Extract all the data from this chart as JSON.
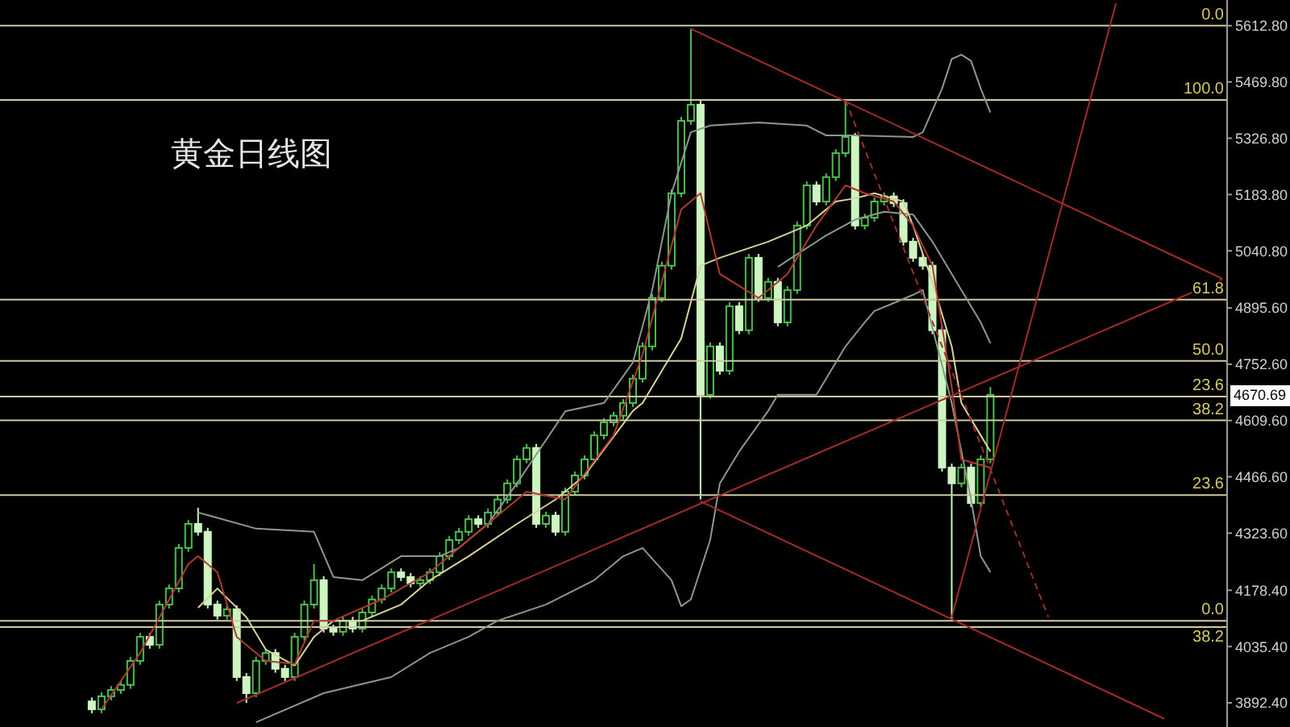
{
  "chart_data": {
    "type": "candlestick",
    "title": "黄金日线图",
    "tick_labels": "y",
    "categories": [
      null,
      null,
      null,
      null,
      null,
      null,
      null,
      null,
      null,
      null,
      null,
      null,
      null,
      null,
      null,
      null,
      null,
      null,
      null,
      null,
      null,
      null,
      null,
      null,
      null,
      null,
      null,
      null,
      null,
      null,
      null,
      null,
      null,
      null,
      null,
      null,
      null,
      null,
      null,
      null,
      null,
      null,
      null,
      null,
      null,
      null,
      null,
      null,
      null,
      null,
      null,
      null,
      null,
      null,
      null,
      null,
      null,
      null,
      null,
      null,
      null,
      null,
      null,
      null,
      null,
      null,
      null,
      null,
      null,
      null,
      null,
      null,
      null,
      null,
      null,
      null,
      null,
      null,
      null,
      null,
      null,
      null,
      null,
      null,
      null,
      null,
      null,
      null,
      null,
      null,
      null,
      null,
      null,
      null,
      null,
      null,
      null,
      null,
      null,
      null,
      null,
      null,
      null,
      null,
      null,
      null,
      null,
      null,
      null,
      null,
      null,
      null,
      null,
      null,
      null,
      null,
      null,
      null,
      null,
      null,
      null,
      null,
      null,
      null,
      null,
      null,
      null
    ],
    "ohlc": [
      null,
      null,
      null,
      null,
      null,
      null,
      null,
      null,
      null,
      [
        3896,
        3906,
        3866,
        3876
      ],
      [
        3876,
        3919,
        3866,
        3909
      ],
      [
        3909,
        3935,
        3899,
        3925
      ],
      [
        3925,
        3948,
        3915,
        3938
      ],
      [
        3938,
        4009,
        3928,
        3999
      ],
      [
        3999,
        4070,
        3989,
        4060
      ],
      [
        4060,
        4070,
        4030,
        4040
      ],
      [
        4040,
        4152,
        4030,
        4142
      ],
      [
        4142,
        4193,
        4132,
        4183
      ],
      [
        4183,
        4296,
        4173,
        4286
      ],
      [
        4286,
        4357,
        4276,
        4347
      ],
      [
        4347,
        4388,
        4317,
        4327
      ],
      [
        4327,
        4337,
        4132,
        4142
      ],
      [
        4142,
        4152,
        4104,
        4114
      ],
      [
        4114,
        4140,
        4104,
        4130
      ],
      [
        4130,
        4140,
        3948,
        3958
      ],
      [
        3958,
        3968,
        3892,
        3917
      ],
      [
        3917,
        4009,
        3907,
        3999
      ],
      [
        3999,
        4029,
        3989,
        4019
      ],
      [
        4019,
        4029,
        3969,
        3979
      ],
      [
        3979,
        3989,
        3948,
        3958
      ],
      [
        3958,
        4070,
        3948,
        4060
      ],
      [
        4060,
        4152,
        4050,
        4142
      ],
      [
        4142,
        4245,
        4132,
        4204
      ],
      [
        4204,
        4214,
        4071,
        4081
      ],
      [
        4081,
        4091,
        4063,
        4073
      ],
      [
        4073,
        4111,
        4063,
        4101
      ],
      [
        4101,
        4111,
        4071,
        4081
      ],
      [
        4081,
        4132,
        4071,
        4122
      ],
      [
        4122,
        4165,
        4112,
        4155
      ],
      [
        4155,
        4193,
        4145,
        4183
      ],
      [
        4183,
        4234,
        4173,
        4224
      ],
      [
        4224,
        4234,
        4202,
        4212
      ],
      [
        4212,
        4222,
        4186,
        4196
      ],
      [
        4196,
        4214,
        4186,
        4204
      ],
      [
        4204,
        4234,
        4194,
        4224
      ],
      [
        4224,
        4275,
        4214,
        4265
      ],
      [
        4265,
        4316,
        4255,
        4306
      ],
      [
        4306,
        4337,
        4296,
        4327
      ],
      [
        4327,
        4369,
        4317,
        4359
      ],
      [
        4359,
        4369,
        4337,
        4347
      ],
      [
        4347,
        4386,
        4337,
        4376
      ],
      [
        4376,
        4419,
        4366,
        4409
      ],
      [
        4409,
        4460,
        4399,
        4450
      ],
      [
        4450,
        4521,
        4440,
        4511
      ],
      [
        4511,
        4550,
        4501,
        4540
      ],
      [
        4540,
        4550,
        4337,
        4347
      ],
      [
        4347,
        4378,
        4337,
        4368
      ],
      [
        4368,
        4378,
        4317,
        4327
      ],
      [
        4327,
        4439,
        4317,
        4429
      ],
      [
        4429,
        4480,
        4419,
        4470
      ],
      [
        4470,
        4521,
        4460,
        4511
      ],
      [
        4511,
        4582,
        4501,
        4572
      ],
      [
        4572,
        4615,
        4562,
        4605
      ],
      [
        4605,
        4632,
        4595,
        4622
      ],
      [
        4622,
        4664,
        4612,
        4654
      ],
      [
        4654,
        4726,
        4644,
        4716
      ],
      [
        4716,
        4808,
        4706,
        4798
      ],
      [
        4798,
        4931,
        4788,
        4921
      ],
      [
        4921,
        5013,
        4911,
        5003
      ],
      [
        5003,
        5197,
        4993,
        5187
      ],
      [
        5187,
        5381,
        5177,
        5371
      ],
      [
        5371,
        5605,
        5361,
        5412
      ],
      [
        5412,
        5422,
        4409,
        4675
      ],
      [
        4675,
        4808,
        4665,
        4798
      ],
      [
        4798,
        4808,
        4726,
        4736
      ],
      [
        4736,
        4910,
        4726,
        4900
      ],
      [
        4900,
        4910,
        4829,
        4839
      ],
      [
        4839,
        5033,
        4829,
        5023
      ],
      [
        5023,
        5033,
        4911,
        4921
      ],
      [
        4921,
        4972,
        4911,
        4962
      ],
      [
        4962,
        4972,
        4849,
        4859
      ],
      [
        4859,
        4951,
        4849,
        4941
      ],
      [
        4941,
        5115,
        4931,
        5105
      ],
      [
        5105,
        5217,
        5095,
        5207
      ],
      [
        5207,
        5217,
        5156,
        5166
      ],
      [
        5166,
        5238,
        5156,
        5228
      ],
      [
        5228,
        5299,
        5218,
        5289
      ],
      [
        5289,
        5424,
        5279,
        5330
      ],
      [
        5330,
        5340,
        5095,
        5105
      ],
      [
        5105,
        5135,
        5095,
        5125
      ],
      [
        5125,
        5176,
        5115,
        5166
      ],
      [
        5166,
        5189,
        5156,
        5179
      ],
      [
        5179,
        5189,
        5152,
        5162
      ],
      [
        5162,
        5172,
        5054,
        5064
      ],
      [
        5064,
        5074,
        5013,
        5023
      ],
      [
        5023,
        5033,
        4993,
        5003
      ],
      [
        5003,
        5013,
        4829,
        4839
      ],
      [
        4839,
        4849,
        4480,
        4490
      ],
      [
        4490,
        4500,
        4102,
        4450
      ],
      [
        4450,
        4500,
        4440,
        4490
      ],
      [
        4490,
        4500,
        4390,
        4400
      ],
      [
        4400,
        4521,
        4390,
        4511
      ],
      [
        4511,
        4695,
        4501,
        4675
      ],
      null,
      null,
      null,
      null,
      null,
      null,
      null,
      null,
      null,
      null,
      null,
      null,
      null,
      null,
      null,
      null,
      null,
      null,
      null,
      null,
      null,
      null,
      null,
      null
    ],
    "series": [
      {
        "type": "line",
        "color": "#8a9a8a",
        "values": [
          null,
          null,
          null,
          null,
          null,
          null,
          null,
          null,
          null,
          null,
          null,
          null,
          null,
          null,
          null,
          null,
          null,
          null,
          null,
          null,
          4376,
          null,
          null,
          null,
          null,
          null,
          4335,
          null,
          null,
          null,
          null,
          null,
          4327,
          null,
          4212,
          null,
          null,
          4204,
          null,
          null,
          null,
          4265,
          null,
          null,
          null,
          4265,
          null,
          4286,
          null,
          null,
          4347,
          null,
          null,
          4450,
          null,
          4523,
          null,
          null,
          4633,
          null,
          null,
          null,
          4654,
          null,
          null,
          4757,
          null,
          4941,
          null,
          5187,
          null,
          5342,
          null,
          5359,
          null,
          null,
          null,
          null,
          5367,
          null,
          null,
          null,
          null,
          5359,
          null,
          5334,
          null,
          null,
          5334,
          null,
          null,
          null,
          null,
          null,
          5330,
          5342,
          null,
          5453,
          5528,
          5539,
          5523,
          5453,
          5392,
          null,
          null,
          null,
          null,
          null,
          null,
          null,
          null,
          null,
          null,
          null,
          null,
          null,
          null,
          null,
          null,
          null,
          null,
          null,
          null,
          null,
          null,
          null,
          null
        ]
      },
      {
        "type": "line",
        "color": "#8a9a8a",
        "values": [
          null,
          null,
          null,
          null,
          null,
          null,
          null,
          null,
          null,
          null,
          null,
          null,
          null,
          null,
          null,
          null,
          null,
          null,
          null,
          null,
          null,
          null,
          null,
          null,
          null,
          null,
          3843,
          null,
          null,
          null,
          null,
          null,
          null,
          3917,
          null,
          null,
          null,
          null,
          null,
          null,
          3958,
          null,
          null,
          null,
          4019,
          null,
          null,
          null,
          4060,
          null,
          null,
          4101,
          null,
          null,
          null,
          null,
          4142,
          null,
          null,
          null,
          null,
          4204,
          null,
          null,
          4265,
          null,
          4286,
          null,
          null,
          4204,
          4138,
          4155,
          null,
          4306,
          4450,
          null,
          4531,
          null,
          null,
          4634,
          4675,
          null,
          null,
          null,
          4675,
          4716,
          null,
          4798,
          null,
          4859,
          4888,
          null,
          4908,
          null,
          4929,
          4941,
          null,
          null,
          4654,
          null,
          4409,
          4265,
          4224,
          null,
          null,
          null,
          null,
          null,
          null,
          null,
          null,
          null,
          null,
          null,
          null,
          null,
          null,
          null,
          null,
          null,
          null,
          null,
          null,
          null,
          null,
          null,
          null
        ]
      },
      {
        "type": "line",
        "color": "#8a9a8a",
        "values": [
          null,
          null,
          null,
          null,
          null,
          null,
          null,
          null,
          null,
          null,
          null,
          null,
          null,
          null,
          null,
          null,
          null,
          null,
          null,
          null,
          null,
          null,
          null,
          null,
          null,
          null,
          null,
          null,
          null,
          null,
          null,
          null,
          null,
          null,
          null,
          null,
          null,
          null,
          null,
          null,
          null,
          null,
          null,
          null,
          null,
          null,
          null,
          null,
          null,
          null,
          null,
          null,
          null,
          null,
          null,
          null,
          null,
          null,
          null,
          null,
          null,
          null,
          null,
          null,
          null,
          null,
          null,
          null,
          null,
          null,
          null,
          null,
          null,
          null,
          null,
          null,
          null,
          null,
          null,
          null,
          5000,
          null,
          null,
          null,
          null,
          5080,
          null,
          null,
          5120,
          null,
          null,
          5140,
          null,
          null,
          5133,
          null,
          5064,
          null,
          null,
          4941,
          null,
          4859,
          4806,
          null,
          null,
          null,
          null,
          null,
          null,
          null,
          null,
          null,
          null,
          null,
          null,
          null,
          null,
          null,
          null,
          null,
          null,
          null,
          null,
          null,
          null,
          null,
          null
        ]
      },
      {
        "type": "line",
        "color": "#d9d29a",
        "values": [
          null,
          null,
          null,
          null,
          null,
          null,
          null,
          null,
          null,
          null,
          null,
          null,
          null,
          null,
          null,
          null,
          null,
          null,
          null,
          null,
          4134,
          null,
          4183,
          null,
          null,
          4110,
          null,
          4028,
          null,
          null,
          3987,
          null,
          4060,
          null,
          4101,
          null,
          null,
          4101,
          null,
          null,
          null,
          4142,
          null,
          null,
          4204,
          null,
          null,
          null,
          4265,
          null,
          null,
          null,
          null,
          4347,
          null,
          null,
          null,
          4409,
          null,
          null,
          4470,
          null,
          null,
          null,
          null,
          4634,
          4654,
          null,
          null,
          null,
          4818,
          null,
          5003,
          null,
          5023,
          null,
          null,
          null,
          null,
          5064,
          null,
          null,
          null,
          5105,
          null,
          null,
          5166,
          null,
          5174,
          null,
          5187,
          null,
          null,
          5166,
          5105,
          null,
          4962,
          null,
          4798,
          4654,
          null,
          4572,
          4531,
          null,
          null,
          null,
          null,
          null,
          null,
          null,
          null,
          null,
          null,
          null,
          null,
          null,
          null,
          null,
          null,
          null,
          null,
          null,
          null,
          null,
          null,
          null,
          null
        ]
      },
      {
        "type": "line",
        "color": "#b03a2e",
        "values": [
          null,
          null,
          null,
          null,
          null,
          null,
          null,
          null,
          null,
          null,
          3876,
          null,
          null,
          null,
          4019,
          null,
          null,
          null,
          null,
          4245,
          4265,
          null,
          4224,
          null,
          4060,
          null,
          null,
          3999,
          null,
          null,
          3991,
          null,
          4101,
          null,
          4101,
          null,
          null,
          null,
          null,
          4155,
          null,
          null,
          null,
          null,
          4224,
          null,
          null,
          null,
          null,
          4327,
          null,
          null,
          null,
          null,
          4429,
          null,
          null,
          null,
          4409,
          null,
          null,
          null,
          null,
          4572,
          null,
          null,
          4777,
          null,
          null,
          null,
          5146,
          null,
          5187,
          null,
          4982,
          null,
          null,
          null,
          4921,
          null,
          null,
          4982,
          null,
          null,
          5105,
          null,
          null,
          5207,
          null,
          5187,
          null,
          null,
          5166,
          null,
          5105,
          null,
          5003,
          null,
          4695,
          4511,
          null,
          null,
          4490,
          null,
          null,
          null,
          null,
          null,
          null,
          null,
          null,
          null,
          null,
          null,
          null,
          null,
          null,
          null,
          null,
          null,
          null,
          null,
          null,
          null,
          null,
          null,
          null
        ]
      },
      {
        "type": "line",
        "color": "#a52a2a",
        "values": [
          null,
          null,
          null,
          null,
          null,
          null,
          null,
          null,
          null,
          null,
          null,
          null,
          null,
          null,
          null,
          null,
          null,
          null,
          null,
          null,
          null,
          null,
          null,
          null,
          null,
          null,
          null,
          null,
          null,
          null,
          null,
          null,
          null,
          null,
          null,
          null,
          null,
          null,
          null,
          null,
          null,
          null,
          null,
          null,
          null,
          null,
          null,
          null,
          null,
          null,
          null,
          null,
          null,
          null,
          null,
          null,
          null,
          null,
          null,
          null,
          null,
          null,
          null,
          null,
          null,
          null,
          null,
          null,
          null,
          null,
          null,
          5605,
          null,
          null,
          null,
          null,
          null,
          null,
          null,
          null,
          null,
          null,
          null,
          null,
          null,
          null,
          null,
          null,
          null,
          null,
          null,
          null,
          null,
          null,
          null,
          null,
          null,
          null,
          null,
          null,
          null,
          null,
          null,
          null,
          null,
          null,
          null,
          null,
          null,
          null,
          null,
          null,
          null,
          null,
          null,
          null,
          null,
          null,
          null,
          null,
          null,
          null,
          null,
          null,
          null,
          null,
          4970
        ]
      },
      {
        "type": "line",
        "color": "#a52a2a",
        "values": [
          null,
          null,
          null,
          null,
          null,
          null,
          null,
          null,
          null,
          null,
          null,
          null,
          null,
          null,
          null,
          null,
          null,
          null,
          null,
          null,
          null,
          null,
          null,
          null,
          3892,
          null,
          null,
          null,
          null,
          null,
          null,
          null,
          null,
          null,
          null,
          null,
          null,
          null,
          null,
          null,
          null,
          null,
          null,
          null,
          null,
          null,
          null,
          null,
          null,
          null,
          null,
          null,
          null,
          null,
          null,
          null,
          null,
          null,
          null,
          null,
          null,
          null,
          null,
          null,
          null,
          null,
          null,
          null,
          null,
          null,
          null,
          null,
          null,
          null,
          null,
          null,
          null,
          null,
          null,
          null,
          null,
          null,
          null,
          null,
          null,
          null,
          null,
          null,
          null,
          null,
          null,
          null,
          null,
          null,
          null,
          null,
          null,
          null,
          null,
          null,
          null,
          null,
          null,
          null,
          null,
          null,
          null,
          null,
          null,
          null,
          null,
          null,
          null,
          null,
          null,
          null,
          null,
          null,
          null,
          null,
          null,
          null,
          null,
          null,
          null,
          null,
          4968
        ]
      },
      {
        "type": "line",
        "color": "#a52a2a",
        "values": [
          null,
          null,
          null,
          null,
          null,
          null,
          null,
          null,
          null,
          null,
          null,
          null,
          null,
          null,
          null,
          null,
          null,
          null,
          null,
          null,
          null,
          null,
          null,
          null,
          null,
          null,
          null,
          null,
          null,
          null,
          null,
          null,
          null,
          null,
          null,
          null,
          null,
          null,
          null,
          null,
          null,
          null,
          null,
          null,
          null,
          null,
          null,
          null,
          null,
          null,
          null,
          null,
          null,
          null,
          null,
          null,
          null,
          null,
          null,
          null,
          null,
          null,
          null,
          null,
          null,
          null,
          null,
          null,
          null,
          null,
          null,
          null,
          4404,
          null,
          null,
          null,
          null,
          null,
          null,
          null,
          null,
          null,
          null,
          null,
          null,
          null,
          null,
          null,
          null,
          null,
          null,
          null,
          null,
          null,
          null,
          null,
          null,
          null,
          null,
          null,
          null,
          null,
          null,
          null,
          null,
          null,
          null,
          null,
          null,
          null,
          null,
          null,
          null,
          null,
          null,
          null,
          null,
          null,
          null,
          null,
          3852,
          null,
          null,
          null,
          null,
          null,
          null
        ]
      },
      {
        "type": "line",
        "color": "#a52a2a",
        "values": [
          null,
          null,
          null,
          null,
          null,
          null,
          null,
          null,
          null,
          null,
          null,
          null,
          null,
          null,
          null,
          null,
          null,
          null,
          null,
          null,
          null,
          null,
          null,
          null,
          null,
          null,
          null,
          null,
          null,
          null,
          null,
          null,
          null,
          null,
          null,
          null,
          null,
          null,
          null,
          null,
          null,
          null,
          null,
          null,
          null,
          null,
          null,
          null,
          null,
          null,
          null,
          null,
          null,
          null,
          null,
          null,
          null,
          null,
          null,
          null,
          null,
          null,
          null,
          null,
          null,
          null,
          null,
          null,
          null,
          null,
          null,
          null,
          null,
          null,
          null,
          null,
          null,
          null,
          null,
          null,
          null,
          null,
          null,
          null,
          null,
          null,
          null,
          null,
          null,
          null,
          null,
          null,
          null,
          null,
          null,
          null,
          null,
          null,
          4110,
          null,
          null,
          null,
          null,
          null,
          null,
          null,
          null,
          null,
          null,
          null,
          null,
          null,
          null,
          null,
          null,
          5670,
          null,
          null,
          null,
          null,
          null,
          null,
          null,
          null,
          null,
          null,
          null
        ]
      },
      {
        "type": "line",
        "color": "#a52a2a",
        "line_style": "dashed",
        "values": [
          null,
          null,
          null,
          null,
          null,
          null,
          null,
          null,
          null,
          null,
          null,
          null,
          null,
          null,
          null,
          null,
          null,
          null,
          null,
          null,
          null,
          null,
          null,
          null,
          null,
          null,
          null,
          null,
          null,
          null,
          null,
          null,
          null,
          null,
          null,
          null,
          null,
          null,
          null,
          null,
          null,
          null,
          null,
          null,
          null,
          null,
          null,
          null,
          null,
          null,
          null,
          null,
          null,
          null,
          null,
          null,
          null,
          null,
          null,
          null,
          null,
          null,
          null,
          null,
          null,
          null,
          null,
          null,
          null,
          null,
          null,
          null,
          null,
          null,
          null,
          null,
          null,
          null,
          null,
          null,
          null,
          null,
          null,
          null,
          null,
          null,
          null,
          5424,
          null,
          null,
          null,
          null,
          null,
          null,
          null,
          null,
          null,
          null,
          null,
          null,
          null,
          null,
          null,
          null,
          null,
          null,
          null,
          null,
          4110,
          null,
          null,
          null,
          null,
          null,
          null,
          null,
          null,
          null,
          null,
          null,
          null,
          null,
          null,
          null,
          null,
          null,
          null
        ]
      }
    ],
    "ylim": [
      3831,
      5678
    ],
    "yticks": [
      {
        "value": 3892.4,
        "label": "3892.40"
      },
      {
        "value": 4035.4,
        "label": "4035.40"
      },
      {
        "value": 4178.4,
        "label": "4178.40"
      },
      {
        "value": 4323.6,
        "label": "4323.60"
      },
      {
        "value": 4466.6,
        "label": "4466.60"
      },
      {
        "value": 4609.6,
        "label": "4609.60"
      },
      {
        "value": 4752.6,
        "label": "4752.60"
      },
      {
        "value": 4895.6,
        "label": "4895.60"
      },
      {
        "value": 5040.8,
        "label": "5040.80"
      },
      {
        "value": 5183.8,
        "label": "5183.80"
      },
      {
        "value": 5326.8,
        "label": "5326.80"
      },
      {
        "value": 5469.8,
        "label": "5469.80"
      },
      {
        "value": 5612.8,
        "label": "5612.80"
      }
    ],
    "ref_lines": [
      {
        "axis": "y",
        "value": 5612.8,
        "color": "#cfcaa0"
      },
      {
        "axis": "y",
        "value": 5424,
        "color": "#cfcaa0"
      },
      {
        "axis": "y",
        "value": 4917,
        "color": "#cfcaa0"
      },
      {
        "axis": "y",
        "value": 4761,
        "color": "#cfcaa0"
      },
      {
        "axis": "y",
        "value": 4670.69,
        "label": "4670.69",
        "color": "#cfcaa0"
      },
      {
        "axis": "y",
        "value": 4610,
        "color": "#cfcaa0"
      },
      {
        "axis": "y",
        "value": 4420,
        "color": "#cfcaa0"
      },
      {
        "axis": "y",
        "value": 4101,
        "color": "#cfcaa0"
      },
      {
        "axis": "y",
        "value": 4085,
        "color": "#cfcaa0"
      }
    ],
    "annotations": [
      {
        "text": "0.0",
        "y": 5612.8
      },
      {
        "text": "100.0",
        "y": 5424
      },
      {
        "text": "61.8",
        "y": 4917
      },
      {
        "text": "50.0",
        "y": 4761
      },
      {
        "text": "23.6",
        "y": 4670.69
      },
      {
        "text": "38.2",
        "y": 4610
      },
      {
        "text": "23.6",
        "y": 4420
      },
      {
        "text": "0.0",
        "y": 4101
      },
      {
        "text": "38.2",
        "y": 4085
      }
    ]
  }
}
